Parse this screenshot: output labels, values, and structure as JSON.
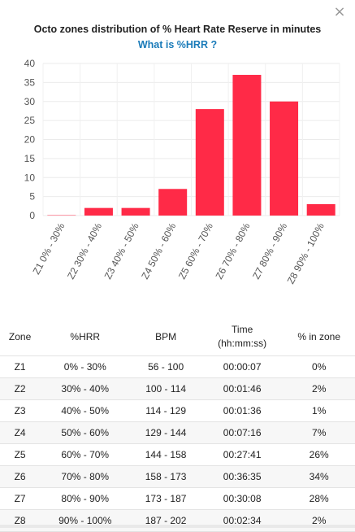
{
  "dialog": {
    "close_label": "×"
  },
  "chart_data": {
    "type": "bar",
    "title": "Octo zones distribution of % Heart Rate Reserve in minutes",
    "subtitle_link": "What is %HRR ?",
    "categories": [
      "Z1 0% - 30%",
      "Z2 30% - 40%",
      "Z3 40% - 50%",
      "Z4 50% - 60%",
      "Z5 60% - 70%",
      "Z6 70% - 80%",
      "Z7 80% - 90%",
      "Z8 90% - 100%"
    ],
    "values": [
      0.1,
      2,
      2,
      7,
      28,
      37,
      30,
      3
    ],
    "yticks": [
      0,
      5,
      10,
      15,
      20,
      25,
      30,
      35,
      40
    ],
    "ylim": [
      0,
      40
    ],
    "bar_color": "#ff2a47",
    "grid": true
  },
  "table": {
    "headers": {
      "zone": "Zone",
      "hrr": "%HRR",
      "bpm": "BPM",
      "time_line1": "Time",
      "time_line2": "(hh:mm:ss)",
      "pct": "% in zone"
    },
    "rows": [
      {
        "zone": "Z1",
        "hrr": "0% - 30%",
        "bpm": "56 - 100",
        "time": "00:00:07",
        "pct": "0%"
      },
      {
        "zone": "Z2",
        "hrr": "30% - 40%",
        "bpm": "100 - 114",
        "time": "00:01:46",
        "pct": "2%"
      },
      {
        "zone": "Z3",
        "hrr": "40% - 50%",
        "bpm": "114 - 129",
        "time": "00:01:36",
        "pct": "1%"
      },
      {
        "zone": "Z4",
        "hrr": "50% - 60%",
        "bpm": "129 - 144",
        "time": "00:07:16",
        "pct": "7%"
      },
      {
        "zone": "Z5",
        "hrr": "60% - 70%",
        "bpm": "144 - 158",
        "time": "00:27:41",
        "pct": "26%"
      },
      {
        "zone": "Z6",
        "hrr": "70% - 80%",
        "bpm": "158 - 173",
        "time": "00:36:35",
        "pct": "34%"
      },
      {
        "zone": "Z7",
        "hrr": "80% - 90%",
        "bpm": "173 - 187",
        "time": "00:30:08",
        "pct": "28%"
      },
      {
        "zone": "Z8",
        "hrr": "90% - 100%",
        "bpm": "187 - 202",
        "time": "00:02:34",
        "pct": "2%"
      }
    ]
  }
}
